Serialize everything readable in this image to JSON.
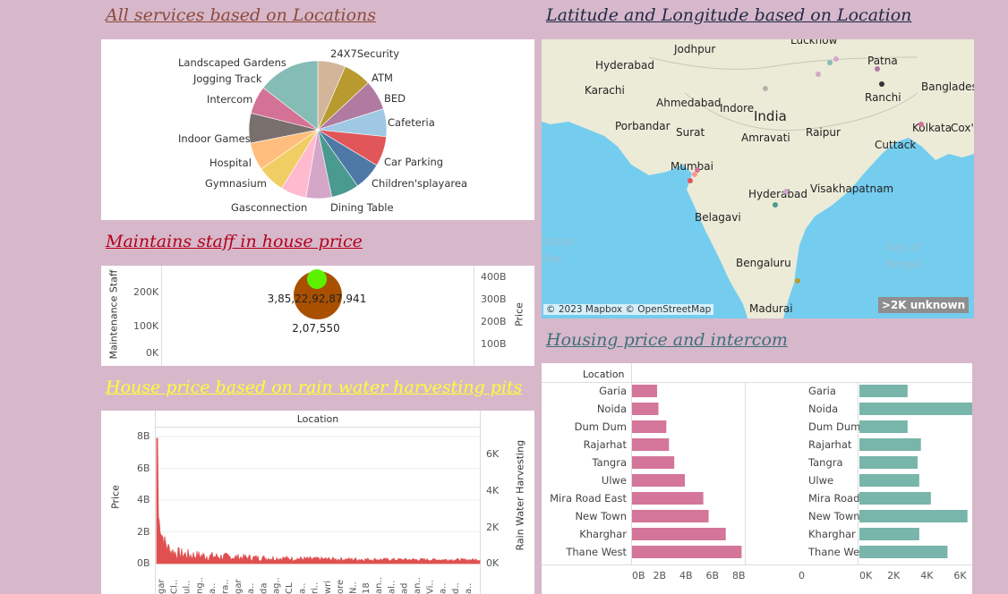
{
  "titles": {
    "services": "All services based on Locations",
    "latlong": "Latitude and Longitude based on Location",
    "staff": "Maintains staff in house price",
    "rain": "House price based on rain water harvesting pits",
    "intercom": "Housing price and intercom"
  },
  "colors": {
    "services_title": "#8b4a3a",
    "latlong_title": "#1f2a44",
    "staff_title": "#b3001b",
    "rain_title": "#ffff33",
    "intercom_title": "#3f6f7a",
    "pink_bar": "#d4759a",
    "teal_bar": "#78b5aa",
    "red_line": "#e05050"
  },
  "pie": {
    "labels": [
      "24X7Security",
      "ATM",
      "BED",
      "Cafeteria",
      "Car Parking",
      "Children'splayarea",
      "Dining Table",
      "Gasconnection",
      "Gymnasium",
      "Hospital",
      "Indoor Games",
      "Intercom",
      "Jogging Track",
      "Landscaped Gardens"
    ]
  },
  "chart_data": [
    {
      "type": "pie",
      "categories": [
        "24X7Security",
        "ATM",
        "BED",
        "Cafeteria",
        "Car Parking",
        "Children'splayarea",
        "Dining Table",
        "Gasconnection",
        "Gymnasium",
        "Hospital",
        "Indoor Games",
        "Intercom",
        "Jogging Track",
        "Landscaped Gardens"
      ],
      "values": [
        6.5,
        6.5,
        7,
        6.5,
        7,
        6.5,
        6.5,
        6,
        6,
        6.5,
        6.5,
        7,
        6.5,
        14.5
      ],
      "colors": [
        "#d3b59a",
        "#b89a2f",
        "#b07aa1",
        "#e15759",
        "#9fc8e5",
        "#4e79a7",
        "#4a9a8f",
        "#d4a6c8",
        "#ffbad0",
        "#8cd17d",
        "#bab0ac",
        "#f1ce63",
        "#ffbe7d",
        "#79706e",
        "#d37295",
        "#fa9a8f",
        "#86bcb6"
      ]
    },
    {
      "type": "scatter",
      "title": "Maintains staff in house price",
      "ylabel": "Maintenance Staff",
      "y2label": "Price",
      "y_ticks": [
        "0K",
        "100K",
        "200K"
      ],
      "y2_ticks": [
        "100B",
        "200B",
        "300B",
        "400B"
      ],
      "points": [
        {
          "label": "3,85,22,92,87,941",
          "color": "#a95000"
        },
        {
          "label": "2,07,550",
          "color": "#5cf000"
        }
      ]
    },
    {
      "type": "line",
      "title": "House price based on rain water harvesting pits",
      "xlabel": "Location",
      "ylabel": "Price",
      "y2label": "Rain Water Harvesting",
      "y_ticks": [
        "0B",
        "2B",
        "4B",
        "6B",
        "8B"
      ],
      "y2_ticks": [
        "0K",
        "2K",
        "4K",
        "6K"
      ],
      "ylim": [
        0,
        8
      ],
      "peak_value": 7.9
    },
    {
      "type": "bar",
      "title": "Housing price and intercom",
      "categories": [
        "Garia",
        "Noida",
        "Dum Dum",
        "Rajarhat",
        "Tangra",
        "Ulwe",
        "Mira Road East",
        "New Town",
        "Kharghar",
        "Thane West"
      ],
      "series": [
        {
          "values": [
            1.9,
            2.0,
            2.6,
            2.8,
            3.2,
            4.0,
            5.4,
            5.8,
            7.1,
            8.3
          ]
        },
        {
          "values": [
            2.9,
            7.2,
            2.9,
            3.7,
            3.5,
            3.6,
            4.3,
            6.5,
            3.6,
            5.3
          ]
        }
      ],
      "x_ticks_left": [
        "0B",
        "2B",
        "4B",
        "6B",
        "8B"
      ],
      "x_ticks_right": [
        "0K",
        "2K",
        "4K",
        "6K"
      ],
      "zero_label": "0",
      "header": "Location"
    }
  ],
  "map": {
    "cities": [
      "Jodhpur",
      "Lucknow",
      "Hyderabad",
      "Patna",
      "Karachi",
      "Ranchi",
      "Bangladesh",
      "Ahmedabad",
      "Indore",
      "India",
      "Porbandar",
      "Surat",
      "Raipur",
      "Kolkata",
      "Cox's",
      "Amravati",
      "Cuttack",
      "Mumbai",
      "Hyderabad",
      "Visakhapatnam",
      "Belagavi",
      "Bengaluru",
      "Madurai",
      "Bay of",
      "Bengal",
      "Arabian",
      "Sea"
    ],
    "copyright": "© 2023 Mapbox © OpenStreetMap",
    "unknown_badge": ">2K unknown"
  },
  "staff": {
    "ylabel": "Maintenance Staff",
    "y2label": "Price"
  },
  "rain": {
    "header": "Location",
    "ylabel": "Price",
    "y2label": "Rain Water Harvesting",
    "x_ticks": [
      "gar",
      "Cl..",
      "ul..",
      "ng..",
      "a..",
      "ra..",
      "gar",
      "a..",
      "da",
      "ag..",
      "CL",
      "a..",
      "ri..",
      "wri",
      "ore",
      "N..",
      "18",
      "an..",
      "al..",
      "ad",
      "an..",
      "Vi..",
      "a..",
      "d..",
      "a.."
    ]
  },
  "intercom": {
    "header": "Location"
  }
}
